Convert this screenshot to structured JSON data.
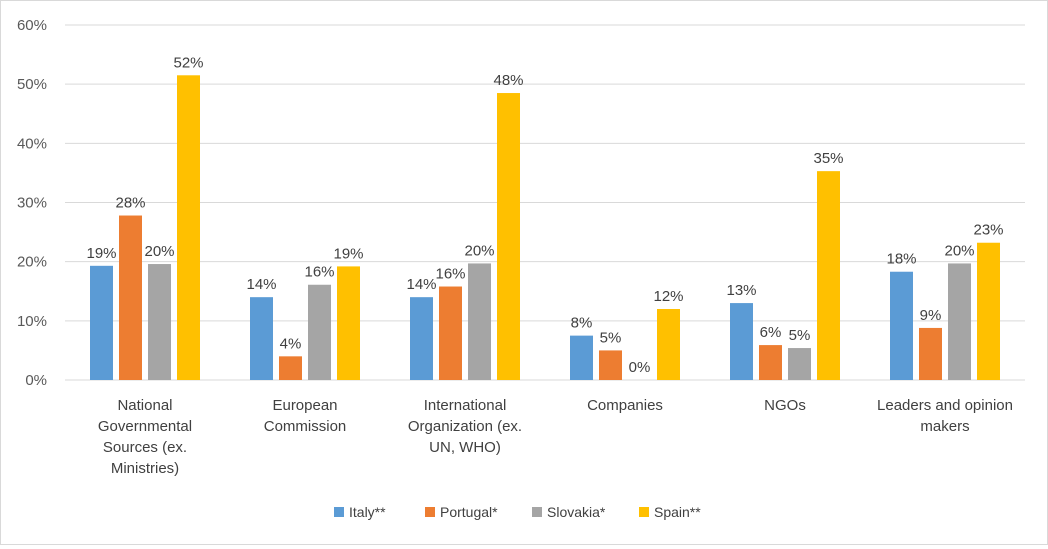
{
  "chart_data": {
    "type": "bar",
    "title": "",
    "xlabel": "",
    "ylabel": "",
    "ylim": [
      0,
      60
    ],
    "yticks": [
      "0%",
      "10%",
      "20%",
      "30%",
      "40%",
      "50%",
      "60%"
    ],
    "grid": true,
    "legend_position": "bottom",
    "categories": [
      [
        "National",
        "Governmental",
        "Sources (ex.",
        "Ministries)"
      ],
      [
        "European",
        "Commission"
      ],
      [
        "International",
        "Organization (ex.",
        "UN, WHO)"
      ],
      [
        "Companies"
      ],
      [
        "NGOs"
      ],
      [
        "Leaders and opinion",
        "makers"
      ]
    ],
    "series": [
      {
        "name": "Italy**",
        "color": "#5b9bd5",
        "values": [
          19.3,
          14,
          14,
          7.5,
          13,
          18.3
        ],
        "labels": [
          "19%",
          "14%",
          "14%",
          "8%",
          "13%",
          "18%"
        ]
      },
      {
        "name": "Portugal*",
        "color": "#ed7d31",
        "values": [
          27.8,
          4,
          15.8,
          5,
          5.9,
          8.8
        ],
        "labels": [
          "28%",
          "4%",
          "16%",
          "5%",
          "6%",
          "9%"
        ]
      },
      {
        "name": "Slovakia*",
        "color": "#a5a5a5",
        "values": [
          19.6,
          16.1,
          19.7,
          0,
          5.4,
          19.7
        ],
        "labels": [
          "20%",
          "16%",
          "20%",
          "0%",
          "5%",
          "20%"
        ]
      },
      {
        "name": "Spain**",
        "color": "#ffc000",
        "values": [
          51.5,
          19.2,
          48.5,
          12,
          35.3,
          23.2
        ],
        "labels": [
          "52%",
          "19%",
          "48%",
          "12%",
          "35%",
          "23%"
        ]
      }
    ]
  }
}
